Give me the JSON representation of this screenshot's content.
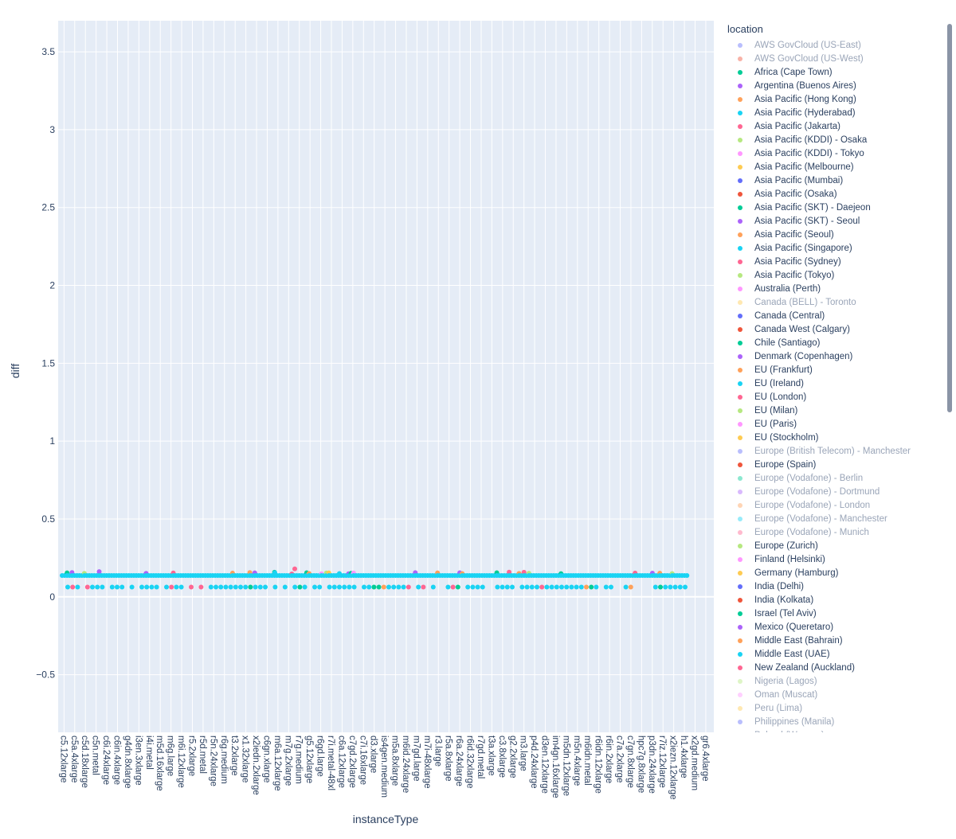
{
  "chart_data": {
    "type": "scatter",
    "xlabel": "instanceType",
    "ylabel": "diff",
    "ylim": [
      -0.87,
      3.7
    ],
    "yticks": [
      -0.5,
      0,
      0.5,
      1,
      1.5,
      2,
      2.5,
      3,
      3.5
    ],
    "ytick_labels": [
      "−0.5",
      "0",
      "0.5",
      "1",
      "1.5",
      "2",
      "2.5",
      "3",
      "3.5"
    ],
    "grid": true,
    "x_tick_labels": [
      "c5.12xlarge",
      "c5a.4xlarge",
      "c5d.18xlarge",
      "c5n.metal",
      "c6i.24xlarge",
      "c6in.4xlarge",
      "g4dn.8xlarge",
      "i3en.3xlarge",
      "i4i.metal",
      "m5d.16xlarge",
      "m6g.large",
      "m6i.12xlarge",
      "r5.2xlarge",
      "r5d.metal",
      "r5n.24xlarge",
      "r6g.medium",
      "t3.2xlarge",
      "x1.32xlarge",
      "x2iedn.2xlarge",
      "c6gn.xlarge",
      "m6a.12xlarge",
      "m7g.2xlarge",
      "r7g.medium",
      "g5.12xlarge",
      "r6gd.large",
      "r7i.metal-48xl",
      "c6a.12xlarge",
      "c7gd.2xlarge",
      "c7i.16xlarge",
      "d3.xlarge",
      "is4gen.medium",
      "m5a.8xlarge",
      "m6id.24xlarge",
      "m7gd.large",
      "m7i-48xlarge",
      "r3.large",
      "r5a.8xlarge",
      "r6a.24xlarge",
      "r6id.32xlarge",
      "r7gd.metal",
      "t3a.xlarge",
      "c3.8xlarge",
      "g2.2xlarge",
      "m3.large",
      "p4d.24xlarge",
      "d3en.12xlarge",
      "im4gn.16xlarge",
      "m5dn.12xlarge",
      "m5n.4xlarge",
      "m6idn.metal",
      "r6idn.12xlarge",
      "r6in.2xlarge",
      "c7a.2xlarge",
      "c7gn.8xlarge",
      "hpc7g.8xlarge",
      "p3dn.24xlarge",
      "r7iz.12xlarge",
      "x2iezn.12xlarge",
      "h1.4xlarge",
      "x2gd.medium",
      "gr6.4xlarge"
    ],
    "series_values": {
      "main_band": 0.137,
      "lower_band": 0.063,
      "outliers": [
        0.18,
        0.155,
        0.15
      ]
    },
    "legend": {
      "title": "location",
      "entries": [
        {
          "name": "AWS GovCloud (US-East)",
          "color": "#636efa",
          "dim": true
        },
        {
          "name": "AWS GovCloud (US-West)",
          "color": "#EF553B",
          "dim": true
        },
        {
          "name": "Africa (Cape Town)",
          "color": "#00cc96",
          "dim": false
        },
        {
          "name": "Argentina (Buenos Aires)",
          "color": "#ab63fa",
          "dim": false
        },
        {
          "name": "Asia Pacific (Hong Kong)",
          "color": "#FFA15A",
          "dim": false
        },
        {
          "name": "Asia Pacific (Hyderabad)",
          "color": "#19d3f3",
          "dim": false
        },
        {
          "name": "Asia Pacific (Jakarta)",
          "color": "#FF6692",
          "dim": false
        },
        {
          "name": "Asia Pacific (KDDI) - Osaka",
          "color": "#B6E880",
          "dim": false
        },
        {
          "name": "Asia Pacific (KDDI) - Tokyo",
          "color": "#FF97FF",
          "dim": false
        },
        {
          "name": "Asia Pacific (Melbourne)",
          "color": "#FECB52",
          "dim": false
        },
        {
          "name": "Asia Pacific (Mumbai)",
          "color": "#636efa",
          "dim": false
        },
        {
          "name": "Asia Pacific (Osaka)",
          "color": "#EF553B",
          "dim": false
        },
        {
          "name": "Asia Pacific (SKT) - Daejeon",
          "color": "#00cc96",
          "dim": false
        },
        {
          "name": "Asia Pacific (SKT) - Seoul",
          "color": "#ab63fa",
          "dim": false
        },
        {
          "name": "Asia Pacific (Seoul)",
          "color": "#FFA15A",
          "dim": false
        },
        {
          "name": "Asia Pacific (Singapore)",
          "color": "#19d3f3",
          "dim": false
        },
        {
          "name": "Asia Pacific (Sydney)",
          "color": "#FF6692",
          "dim": false
        },
        {
          "name": "Asia Pacific (Tokyo)",
          "color": "#B6E880",
          "dim": false
        },
        {
          "name": "Australia (Perth)",
          "color": "#FF97FF",
          "dim": false
        },
        {
          "name": "Canada (BELL) - Toronto",
          "color": "#FECB52",
          "dim": true
        },
        {
          "name": "Canada (Central)",
          "color": "#636efa",
          "dim": false
        },
        {
          "name": "Canada West (Calgary)",
          "color": "#EF553B",
          "dim": false
        },
        {
          "name": "Chile (Santiago)",
          "color": "#00cc96",
          "dim": false
        },
        {
          "name": "Denmark (Copenhagen)",
          "color": "#ab63fa",
          "dim": false
        },
        {
          "name": "EU (Frankfurt)",
          "color": "#FFA15A",
          "dim": false
        },
        {
          "name": "EU (Ireland)",
          "color": "#19d3f3",
          "dim": false
        },
        {
          "name": "EU (London)",
          "color": "#FF6692",
          "dim": false
        },
        {
          "name": "EU (Milan)",
          "color": "#B6E880",
          "dim": false
        },
        {
          "name": "EU (Paris)",
          "color": "#FF97FF",
          "dim": false
        },
        {
          "name": "EU (Stockholm)",
          "color": "#FECB52",
          "dim": false
        },
        {
          "name": "Europe (British Telecom) - Manchester",
          "color": "#636efa",
          "dim": true
        },
        {
          "name": "Europe (Spain)",
          "color": "#EF553B",
          "dim": false
        },
        {
          "name": "Europe (Vodafone) - Berlin",
          "color": "#00cc96",
          "dim": true
        },
        {
          "name": "Europe (Vodafone) - Dortmund",
          "color": "#ab63fa",
          "dim": true
        },
        {
          "name": "Europe (Vodafone) - London",
          "color": "#FFA15A",
          "dim": true
        },
        {
          "name": "Europe (Vodafone) - Manchester",
          "color": "#19d3f3",
          "dim": true
        },
        {
          "name": "Europe (Vodafone) - Munich",
          "color": "#FF6692",
          "dim": true
        },
        {
          "name": "Europe (Zurich)",
          "color": "#B6E880",
          "dim": false
        },
        {
          "name": "Finland (Helsinki)",
          "color": "#FF97FF",
          "dim": false
        },
        {
          "name": "Germany (Hamburg)",
          "color": "#FECB52",
          "dim": false
        },
        {
          "name": "India (Delhi)",
          "color": "#636efa",
          "dim": false
        },
        {
          "name": "India (Kolkata)",
          "color": "#EF553B",
          "dim": false
        },
        {
          "name": "Israel (Tel Aviv)",
          "color": "#00cc96",
          "dim": false
        },
        {
          "name": "Mexico (Queretaro)",
          "color": "#ab63fa",
          "dim": false
        },
        {
          "name": "Middle East (Bahrain)",
          "color": "#FFA15A",
          "dim": false
        },
        {
          "name": "Middle East (UAE)",
          "color": "#19d3f3",
          "dim": false
        },
        {
          "name": "New Zealand (Auckland)",
          "color": "#FF6692",
          "dim": false
        },
        {
          "name": "Nigeria (Lagos)",
          "color": "#B6E880",
          "dim": true
        },
        {
          "name": "Oman (Muscat)",
          "color": "#FF97FF",
          "dim": true
        },
        {
          "name": "Peru (Lima)",
          "color": "#FECB52",
          "dim": true
        },
        {
          "name": "Philippines (Manila)",
          "color": "#636efa",
          "dim": true
        },
        {
          "name": "Poland (Warsaw)",
          "color": "#EF553B",
          "dim": true
        }
      ]
    }
  }
}
